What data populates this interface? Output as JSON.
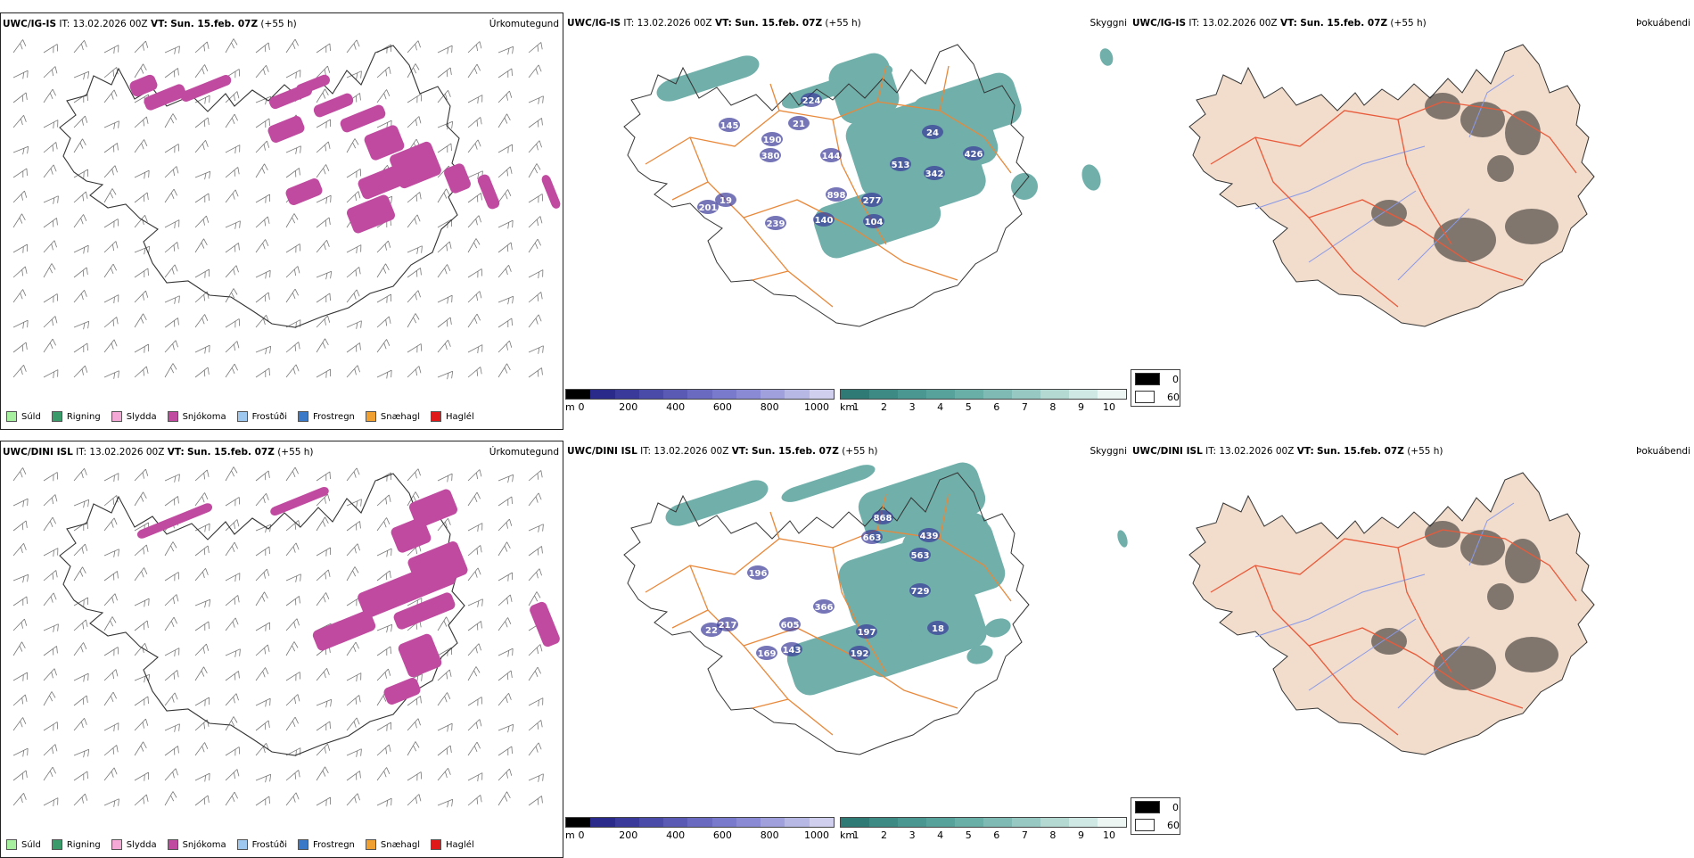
{
  "precip_legend": [
    {
      "label": "Súld",
      "color": "#a6f0a0"
    },
    {
      "label": "Rigning",
      "color": "#3a9a6a"
    },
    {
      "label": "Slydda",
      "color": "#f4a8d6"
    },
    {
      "label": "Snjókoma",
      "color": "#c04aa0"
    },
    {
      "label": "Frostúði",
      "color": "#9fc8f0"
    },
    {
      "label": "Frostregn",
      "color": "#3a78c8"
    },
    {
      "label": "Snæhagl",
      "color": "#f0a030"
    },
    {
      "label": "Haglél",
      "color": "#e01818"
    }
  ],
  "rows": [
    {
      "model": "UWC/IG-IS",
      "it_label": "IT:",
      "it_value": "13.02.2026 00Z",
      "vt_label": "VT:",
      "vt_value": "Sun. 15.feb. 07Z",
      "lead": "(+55 h)",
      "types": [
        "Úrkomutegund",
        "Skyggni",
        "Þokuábendi"
      ],
      "cloud_labels": [
        "224",
        "145",
        "190",
        "380",
        "21",
        "144",
        "513",
        "342",
        "426",
        "898",
        "24",
        "201",
        "19",
        "239",
        "140",
        "277",
        "104"
      ]
    },
    {
      "model": "UWC/DINI ISL",
      "it_label": "IT:",
      "it_value": "13.02.2026 00Z",
      "vt_label": "VT:",
      "vt_value": "Sun. 15.feb. 07Z",
      "lead": "(+55 h)",
      "types": [
        "Úrkomutegund",
        "Skyggni",
        "Þokuábendi"
      ],
      "cloud_labels": [
        "868",
        "663",
        "439",
        "563",
        "196",
        "729",
        "366",
        "605",
        "217",
        "22",
        "197",
        "169",
        "143",
        "192",
        "18"
      ]
    }
  ],
  "ceiling_bar": {
    "unit": "m",
    "ticks": [
      "0",
      "200",
      "400",
      "600",
      "800",
      "1000"
    ],
    "colors": [
      "#000000",
      "#2a2a8a",
      "#3a3a9a",
      "#4a4aa8",
      "#5a5ab4",
      "#6a6ac0",
      "#7a7acc",
      "#8a8ad4",
      "#a0a0dc",
      "#b8b8e4",
      "#d0d0ee"
    ]
  },
  "visibility_bar": {
    "unit": "km",
    "ticks": [
      "1",
      "2",
      "3",
      "4",
      "5",
      "6",
      "7",
      "8",
      "9",
      "10"
    ],
    "colors": [
      "#2f7a74",
      "#3d8a84",
      "#4a9690",
      "#58a29c",
      "#6aaea8",
      "#80bab4",
      "#98c8c2",
      "#b4d8d2",
      "#d0e8e4",
      "#eef6f4"
    ]
  },
  "fog_legend": [
    {
      "label": "0",
      "color": "#000000"
    },
    {
      "label": "60",
      "color": "#ffffff"
    }
  ]
}
